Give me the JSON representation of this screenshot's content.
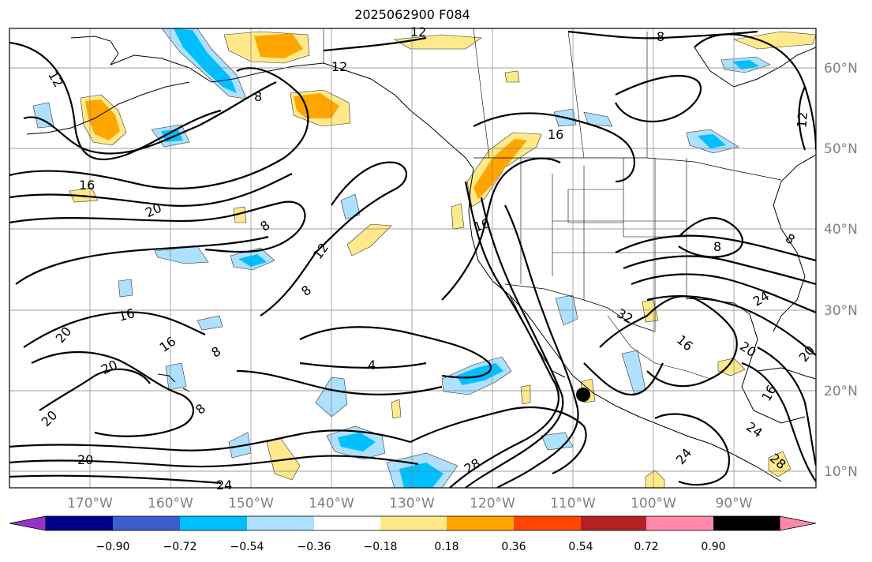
{
  "title": "2025062900 F084",
  "map": {
    "lon_range": [
      -180,
      -80
    ],
    "lat_range": [
      8,
      65
    ],
    "lon_labels": [
      "170°W",
      "160°W",
      "150°W",
      "140°W",
      "130°W",
      "120°W",
      "110°W",
      "100°W",
      "90°W"
    ],
    "lat_labels": [
      "60°N",
      "50°N",
      "40°N",
      "30°N",
      "20°N",
      "10°N"
    ],
    "grid": true,
    "contour_color": "#000000",
    "contour_labels": [
      "12",
      "8",
      "12",
      "8",
      "16",
      "8",
      "16",
      "20",
      "8",
      "12",
      "16",
      "8",
      "16",
      "20",
      "16",
      "20",
      "8",
      "4",
      "20",
      "8",
      "32",
      "16",
      "20",
      "24",
      "28",
      "16",
      "24",
      "28",
      "20",
      "24",
      "24",
      "20",
      "8",
      "12",
      "12"
    ],
    "marker": {
      "name": "black-dot",
      "lon": -109.3,
      "lat": 19.5
    }
  },
  "colorbar": {
    "ticks": [
      "−0.90",
      "−0.72",
      "−0.54",
      "−0.36",
      "−0.18",
      "0.18",
      "0.36",
      "0.54",
      "0.72",
      "0.90"
    ],
    "colors": [
      "#9932cc",
      "#00008b",
      "#3a5fcd",
      "#00bfff",
      "#aee0ff",
      "#ffffff",
      "#ffe98a",
      "#ffa500",
      "#ff4500",
      "#b22222",
      "#ff88aa"
    ]
  }
}
